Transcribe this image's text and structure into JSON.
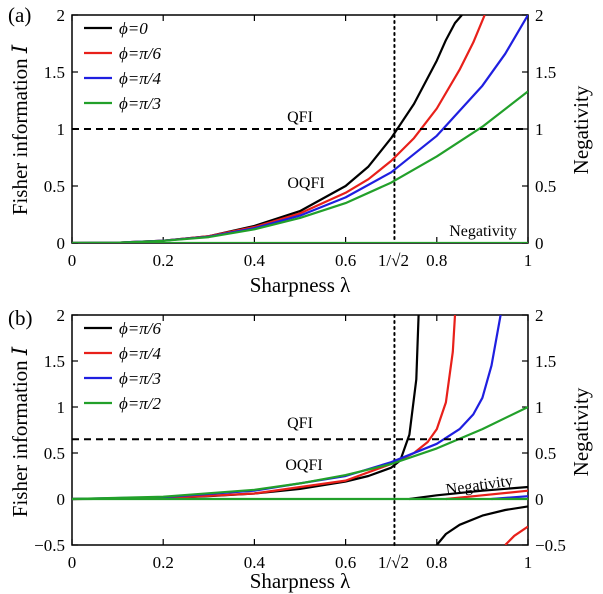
{
  "figure": {
    "panels": [
      {
        "label": "(a)",
        "xlabel": "Sharpness λ",
        "ylabel": "Fisher information 𝐼",
        "ylabel_right": "Negativity",
        "xlim": [
          0,
          1
        ],
        "ylim": [
          0,
          2
        ],
        "xticks": [
          "0",
          "0.2",
          "0.4",
          "0.6",
          "0.8",
          "1"
        ],
        "special_xtick": "1/√2",
        "yticks": [
          "0",
          "0.5",
          "1",
          "1.5",
          "2"
        ],
        "annotations": {
          "qfi": "QFI",
          "oqfi": "OQFI",
          "negativity": "Negativity"
        },
        "legend": [
          "ϕ=0",
          "ϕ=π/6",
          "ϕ=π/4",
          "ϕ=π/3"
        ]
      },
      {
        "label": "(b)",
        "xlabel": "Sharpness λ",
        "ylabel": "Fisher information 𝐼",
        "ylabel_right": "Negativity",
        "xlim": [
          0,
          1
        ],
        "ylim": [
          -0.5,
          2
        ],
        "xticks": [
          "0",
          "0.2",
          "0.4",
          "0.6",
          "0.8",
          "1"
        ],
        "special_xtick": "1/√2",
        "yticks": [
          "−0.5",
          "0",
          "0.5",
          "1",
          "1.5",
          "2"
        ],
        "annotations": {
          "qfi": "QFI",
          "oqfi": "OQFI",
          "negativity": "Negativity"
        },
        "legend": [
          "ϕ=π/6",
          "ϕ=π/4",
          "ϕ=π/3",
          "ϕ=π/2"
        ]
      }
    ]
  },
  "chart_data": [
    {
      "type": "line",
      "panel": "(a)",
      "xlabel": "Sharpness λ",
      "ylabel": "Fisher information 𝐼",
      "ylabel_right": "Negativity",
      "xlim": [
        0,
        1
      ],
      "ylim": [
        0,
        2
      ],
      "grid": false,
      "legend_position": "top-left",
      "series": [
        {
          "name": "ϕ=0",
          "color": "#000000",
          "x": [
            0,
            0.1,
            0.2,
            0.3,
            0.4,
            0.5,
            0.6,
            0.65,
            0.7,
            0.75,
            0.8,
            0.82,
            0.84,
            0.855
          ],
          "y": [
            0,
            0.003,
            0.02,
            0.06,
            0.15,
            0.28,
            0.5,
            0.67,
            0.92,
            1.22,
            1.6,
            1.78,
            1.93,
            2.0
          ]
        },
        {
          "name": "ϕ=π/6",
          "color": "#e8201a",
          "x": [
            0,
            0.1,
            0.2,
            0.3,
            0.4,
            0.5,
            0.6,
            0.65,
            0.7,
            0.75,
            0.8,
            0.85,
            0.88,
            0.905
          ],
          "y": [
            0,
            0.003,
            0.02,
            0.06,
            0.14,
            0.26,
            0.44,
            0.56,
            0.72,
            0.92,
            1.18,
            1.52,
            1.76,
            2.0
          ]
        },
        {
          "name": "ϕ=π/4",
          "color": "#1f1fe0",
          "x": [
            0,
            0.1,
            0.2,
            0.3,
            0.4,
            0.5,
            0.6,
            0.7,
            0.8,
            0.9,
            0.95,
            1.0
          ],
          "y": [
            0,
            0.003,
            0.02,
            0.055,
            0.13,
            0.24,
            0.4,
            0.62,
            0.94,
            1.38,
            1.66,
            2.0
          ]
        },
        {
          "name": "ϕ=π/3",
          "color": "#22a02a",
          "x": [
            0,
            0.1,
            0.2,
            0.3,
            0.4,
            0.5,
            0.6,
            0.7,
            0.8,
            0.9,
            1.0
          ],
          "y": [
            0,
            0.003,
            0.019,
            0.052,
            0.12,
            0.22,
            0.35,
            0.53,
            0.76,
            1.02,
            1.33
          ]
        },
        {
          "name": "Negativity",
          "color": "#22a02a",
          "x": [
            0,
            1.0
          ],
          "y": [
            0,
            0
          ]
        },
        {
          "name": "QFI",
          "color": "#000000",
          "dash": true,
          "x": [
            0,
            1.0
          ],
          "y": [
            1,
            1
          ]
        }
      ],
      "vertical_marker": {
        "x": 0.7071,
        "style": "dotted"
      }
    },
    {
      "type": "line",
      "panel": "(b)",
      "xlabel": "Sharpness λ",
      "ylabel": "Fisher information 𝐼",
      "ylabel_right": "Negativity",
      "xlim": [
        0,
        1
      ],
      "ylim": [
        -0.5,
        2
      ],
      "grid": false,
      "legend_position": "top-left",
      "series": [
        {
          "name": "ϕ=π/6",
          "color": "#000000",
          "x": [
            0,
            0.1,
            0.2,
            0.3,
            0.4,
            0.5,
            0.6,
            0.65,
            0.7,
            0.72,
            0.74,
            0.755,
            0.76
          ],
          "y": [
            0,
            0.002,
            0.01,
            0.03,
            0.06,
            0.11,
            0.19,
            0.25,
            0.34,
            0.42,
            0.7,
            1.3,
            2.0
          ]
        },
        {
          "name": "ϕ=π/4",
          "color": "#e8201a",
          "x": [
            0,
            0.2,
            0.4,
            0.6,
            0.7,
            0.75,
            0.78,
            0.8,
            0.82,
            0.835,
            0.84
          ],
          "y": [
            0,
            0.01,
            0.06,
            0.2,
            0.38,
            0.5,
            0.62,
            0.76,
            1.05,
            1.6,
            2.0
          ]
        },
        {
          "name": "ϕ=π/3",
          "color": "#1f1fe0",
          "x": [
            0,
            0.2,
            0.4,
            0.6,
            0.7,
            0.8,
            0.85,
            0.88,
            0.9,
            0.92,
            0.94
          ],
          "y": [
            0,
            0.02,
            0.09,
            0.25,
            0.4,
            0.6,
            0.76,
            0.92,
            1.1,
            1.45,
            2.0
          ]
        },
        {
          "name": "ϕ=π/2",
          "color": "#22a02a",
          "x": [
            0,
            0.2,
            0.4,
            0.5,
            0.6,
            0.7,
            0.8,
            0.9,
            1.0
          ],
          "y": [
            0,
            0.025,
            0.1,
            0.17,
            0.26,
            0.38,
            0.55,
            0.76,
            1.0
          ]
        },
        {
          "name": "Negativity ϕ=π/6",
          "color": "#000000",
          "x": [
            0.74,
            0.8,
            0.9,
            1.0
          ],
          "y": [
            0,
            0.04,
            0.09,
            0.13
          ]
        },
        {
          "name": "Negativity ϕ=π/4",
          "color": "#e8201a",
          "x": [
            0.82,
            0.9,
            1.0
          ],
          "y": [
            0,
            0.04,
            0.09
          ]
        },
        {
          "name": "Negativity ϕ=π/3",
          "color": "#1f1fe0",
          "x": [
            0.92,
            1.0
          ],
          "y": [
            0,
            0.03
          ]
        },
        {
          "name": "Negativity ϕ=π/2",
          "color": "#22a02a",
          "x": [
            0,
            1.0
          ],
          "y": [
            0,
            0
          ]
        },
        {
          "name": "Negative branch ϕ=π/6",
          "color": "#000000",
          "x": [
            0.8,
            0.82,
            0.85,
            0.9,
            0.95,
            1.0
          ],
          "y": [
            -0.5,
            -0.38,
            -0.28,
            -0.18,
            -0.12,
            -0.08
          ]
        },
        {
          "name": "Negative branch ϕ=π/4",
          "color": "#e8201a",
          "x": [
            0.95,
            0.97,
            1.0
          ],
          "y": [
            -0.5,
            -0.4,
            -0.3
          ]
        },
        {
          "name": "QFI",
          "color": "#000000",
          "dash": true,
          "x": [
            0,
            1.0
          ],
          "y": [
            0.65,
            0.65
          ]
        }
      ],
      "vertical_marker": {
        "x": 0.7071,
        "style": "dotted"
      }
    }
  ]
}
